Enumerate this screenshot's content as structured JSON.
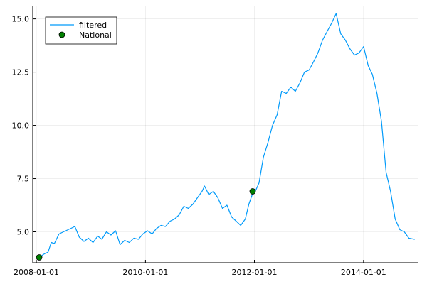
{
  "chart_data": {
    "type": "line",
    "title": "",
    "xlabel": "",
    "ylabel": "",
    "x_axis_type": "date",
    "xlim": [
      "2007-12-08",
      "2014-12-30"
    ],
    "ylim": [
      3.55,
      15.62
    ],
    "x_ticks": [
      "2008-01-01",
      "2010-01-01",
      "2012-01-01",
      "2014-01-01"
    ],
    "y_ticks": [
      5.0,
      7.5,
      10.0,
      12.5,
      15.0
    ],
    "y_tick_labels": [
      "5.0",
      "7.5",
      "10.0",
      "12.5",
      "15.0"
    ],
    "grid": true,
    "legend": {
      "position": "top-left",
      "entries": [
        "filtered",
        "National"
      ]
    },
    "series": [
      {
        "name": "filtered",
        "kind": "line",
        "color": "#009AFA",
        "points": [
          [
            "2008-01-20",
            3.8
          ],
          [
            "2008-02-20",
            3.95
          ],
          [
            "2008-03-20",
            4.05
          ],
          [
            "2008-04-10",
            4.5
          ],
          [
            "2008-05-01",
            4.45
          ],
          [
            "2008-06-01",
            4.9
          ],
          [
            "2008-07-01",
            5.0
          ],
          [
            "2008-08-01",
            5.1
          ],
          [
            "2008-09-15",
            5.25
          ],
          [
            "2008-10-15",
            4.75
          ],
          [
            "2008-11-15",
            4.55
          ],
          [
            "2008-12-15",
            4.7
          ],
          [
            "2009-01-15",
            4.5
          ],
          [
            "2009-02-15",
            4.8
          ],
          [
            "2009-03-15",
            4.65
          ],
          [
            "2009-04-15",
            5.0
          ],
          [
            "2009-05-15",
            4.85
          ],
          [
            "2009-06-15",
            5.05
          ],
          [
            "2009-07-15",
            4.4
          ],
          [
            "2009-08-15",
            4.6
          ],
          [
            "2009-09-15",
            4.5
          ],
          [
            "2009-10-15",
            4.7
          ],
          [
            "2009-11-15",
            4.65
          ],
          [
            "2009-12-15",
            4.9
          ],
          [
            "2010-01-15",
            5.05
          ],
          [
            "2010-02-15",
            4.9
          ],
          [
            "2010-03-15",
            5.15
          ],
          [
            "2010-04-15",
            5.3
          ],
          [
            "2010-05-15",
            5.25
          ],
          [
            "2010-06-15",
            5.5
          ],
          [
            "2010-07-15",
            5.6
          ],
          [
            "2010-08-15",
            5.8
          ],
          [
            "2010-09-15",
            6.2
          ],
          [
            "2010-10-15",
            6.1
          ],
          [
            "2010-11-15",
            6.3
          ],
          [
            "2010-12-15",
            6.6
          ],
          [
            "2011-01-15",
            6.9
          ],
          [
            "2011-02-01",
            7.15
          ],
          [
            "2011-03-01",
            6.75
          ],
          [
            "2011-04-01",
            6.9
          ],
          [
            "2011-05-01",
            6.6
          ],
          [
            "2011-06-01",
            6.1
          ],
          [
            "2011-07-01",
            6.25
          ],
          [
            "2011-08-01",
            5.7
          ],
          [
            "2011-09-01",
            5.5
          ],
          [
            "2011-10-01",
            5.3
          ],
          [
            "2011-11-01",
            5.6
          ],
          [
            "2011-11-25",
            6.3
          ],
          [
            "2011-12-20",
            6.8
          ],
          [
            "2012-01-10",
            6.95
          ],
          [
            "2012-02-01",
            7.3
          ],
          [
            "2012-03-01",
            8.5
          ],
          [
            "2012-04-01",
            9.2
          ],
          [
            "2012-05-01",
            10.0
          ],
          [
            "2012-06-01",
            10.5
          ],
          [
            "2012-07-01",
            11.6
          ],
          [
            "2012-08-01",
            11.5
          ],
          [
            "2012-09-01",
            11.8
          ],
          [
            "2012-10-01",
            11.6
          ],
          [
            "2012-11-01",
            12.0
          ],
          [
            "2012-12-01",
            12.5
          ],
          [
            "2013-01-01",
            12.6
          ],
          [
            "2013-02-01",
            13.0
          ],
          [
            "2013-03-01",
            13.4
          ],
          [
            "2013-04-01",
            14.0
          ],
          [
            "2013-05-01",
            14.4
          ],
          [
            "2013-06-01",
            14.8
          ],
          [
            "2013-07-01",
            15.25
          ],
          [
            "2013-08-01",
            14.3
          ],
          [
            "2013-09-01",
            14.0
          ],
          [
            "2013-10-01",
            13.6
          ],
          [
            "2013-11-01",
            13.3
          ],
          [
            "2013-12-01",
            13.4
          ],
          [
            "2014-01-01",
            13.7
          ],
          [
            "2014-02-01",
            12.8
          ],
          [
            "2014-03-01",
            12.4
          ],
          [
            "2014-04-01",
            11.5
          ],
          [
            "2014-05-01",
            10.2
          ],
          [
            "2014-06-01",
            7.8
          ],
          [
            "2014-07-01",
            6.9
          ],
          [
            "2014-08-01",
            5.6
          ],
          [
            "2014-09-01",
            5.1
          ],
          [
            "2014-10-01",
            5.0
          ],
          [
            "2014-11-01",
            4.7
          ],
          [
            "2014-12-10",
            4.65
          ]
        ]
      },
      {
        "name": "National",
        "kind": "scatter",
        "color": "#008000",
        "points": [
          [
            "2008-01-20",
            3.8
          ],
          [
            "2011-12-20",
            6.9
          ]
        ]
      }
    ]
  }
}
